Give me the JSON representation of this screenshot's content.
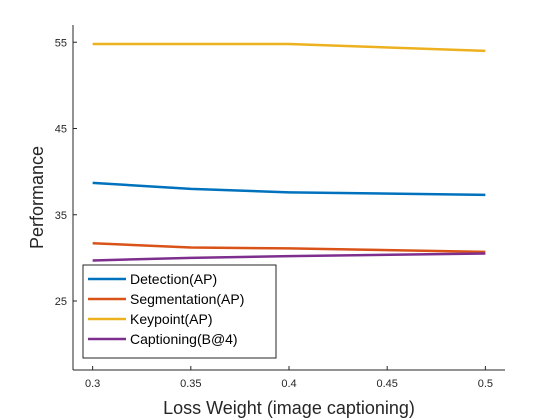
{
  "chart_data": {
    "type": "line",
    "title": "",
    "xlabel": "Loss Weight (image captioning)",
    "ylabel": "Performance",
    "x": [
      0.3,
      0.35,
      0.4,
      0.5
    ],
    "xlim": [
      0.29,
      0.51
    ],
    "ylim": [
      17,
      57
    ],
    "xticks": [
      0.3,
      0.35,
      0.4,
      0.45,
      0.5
    ],
    "xtick_labels": [
      "0.3",
      "0.35",
      "0.4",
      "0.45",
      "0.5"
    ],
    "yticks": [
      25,
      35,
      45,
      55
    ],
    "ytick_labels": [
      "25",
      "35",
      "45",
      "55"
    ],
    "grid": false,
    "legend_position": "bottom-left",
    "series": [
      {
        "name": "Detection(AP)",
        "color": "#0072BD",
        "values": [
          38.7,
          38.0,
          37.6,
          37.3
        ]
      },
      {
        "name": "Segmentation(AP)",
        "color": "#D95319",
        "values": [
          31.7,
          31.2,
          31.1,
          30.7
        ]
      },
      {
        "name": "Keypoint(AP)",
        "color": "#EDB120",
        "values": [
          54.8,
          54.8,
          54.8,
          54.0
        ]
      },
      {
        "name": "Captioning(B@4)",
        "color": "#7E2F8E",
        "values": [
          29.7,
          30.0,
          30.2,
          30.5
        ]
      }
    ]
  }
}
